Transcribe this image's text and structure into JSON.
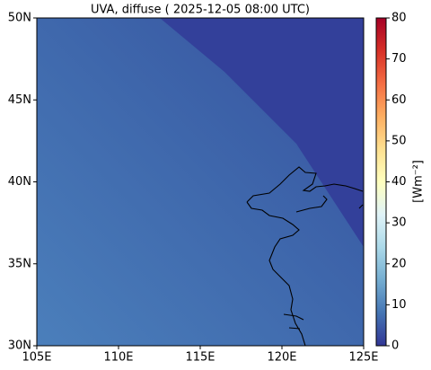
{
  "chart_data": {
    "type": "map",
    "title": "UVA, diffuse ( 2025-12-05 08:00 UTC)",
    "xlim": [
      105,
      125
    ],
    "xticks": [
      {
        "value": 105,
        "label": "105E"
      },
      {
        "value": 110,
        "label": "110E"
      },
      {
        "value": 115,
        "label": "115E"
      },
      {
        "value": 120,
        "label": "120E"
      },
      {
        "value": 125,
        "label": "125E"
      }
    ],
    "ylim": [
      30,
      50
    ],
    "yticks": [
      {
        "value": 30,
        "label": "30N"
      },
      {
        "value": 35,
        "label": "35N"
      },
      {
        "value": 40,
        "label": "40N"
      },
      {
        "value": 45,
        "label": "45N"
      },
      {
        "value": 50,
        "label": "50N"
      }
    ],
    "colorbar": {
      "label": "[Wm⁻²]",
      "lim": [
        0,
        80
      ],
      "ticks": [
        0,
        10,
        20,
        30,
        40,
        50,
        60,
        70,
        80
      ],
      "colors": [
        "#313695",
        "#4575b4",
        "#74add1",
        "#abd9e9",
        "#e0f3f8",
        "#ffffbf",
        "#fee090",
        "#fdae61",
        "#f46d43",
        "#d73027",
        "#a50026"
      ]
    }
  }
}
